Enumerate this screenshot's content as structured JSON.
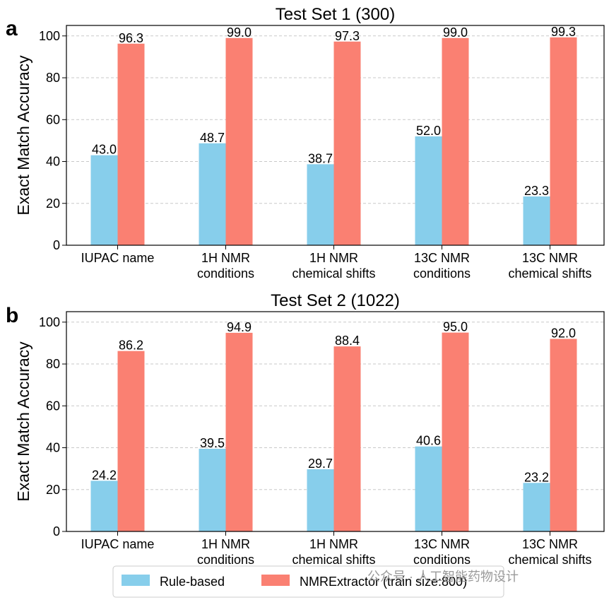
{
  "chart_data": [
    {
      "type": "bar",
      "panel_letter": "a",
      "title": "Test Set 1 (300)",
      "ylabel": "Exact Match Accuracy",
      "xlabel": "",
      "ylim": [
        0,
        105
      ],
      "yticks": [
        0,
        20,
        40,
        60,
        80,
        100
      ],
      "grid": "y-dashed",
      "categories": [
        [
          "IUPAC name"
        ],
        [
          "1H NMR",
          "conditions"
        ],
        [
          "1H NMR",
          "chemical shifts"
        ],
        [
          "13C NMR",
          "conditions"
        ],
        [
          "13C NMR",
          "chemical shifts"
        ]
      ],
      "series": [
        {
          "name": "Rule-based",
          "color": "#87CEEB",
          "values": [
            43.0,
            48.7,
            38.7,
            52.0,
            23.3
          ]
        },
        {
          "name": "NMRExtractor (train size:800)",
          "color": "#FA8072",
          "values": [
            96.3,
            99.0,
            97.3,
            99.0,
            99.3
          ]
        }
      ]
    },
    {
      "type": "bar",
      "panel_letter": "b",
      "title": "Test Set 2 (1022)",
      "ylabel": "Exact Match Accuracy",
      "xlabel": "",
      "ylim": [
        0,
        105
      ],
      "yticks": [
        0,
        20,
        40,
        60,
        80,
        100
      ],
      "grid": "y-dashed",
      "categories": [
        [
          "IUPAC name"
        ],
        [
          "1H NMR",
          "conditions"
        ],
        [
          "1H NMR",
          "chemical shifts"
        ],
        [
          "13C NMR",
          "conditions"
        ],
        [
          "13C NMR",
          "chemical shifts"
        ]
      ],
      "series": [
        {
          "name": "Rule-based",
          "color": "#87CEEB",
          "values": [
            24.2,
            39.5,
            29.7,
            40.6,
            23.2
          ]
        },
        {
          "name": "NMRExtractor (train size:800)",
          "color": "#FA8072",
          "values": [
            86.2,
            94.9,
            88.4,
            95.0,
            92.0
          ]
        }
      ]
    }
  ],
  "legend": {
    "placement": "bottom-center",
    "items": [
      {
        "label": "Rule-based",
        "color": "#87CEEB"
      },
      {
        "label": "NMRExtractor (train size:800)",
        "color": "#FA8072"
      }
    ]
  },
  "watermark": "公众号 · 人工智能药物设计"
}
